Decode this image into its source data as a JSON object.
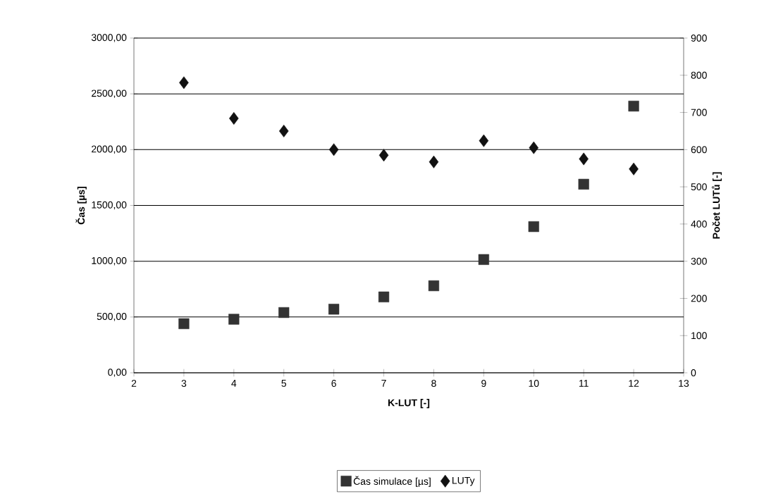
{
  "chart_data": {
    "type": "scatter",
    "xlabel": "K-LUT [-]",
    "ylabel": "Čas [µs]",
    "y2label": "Počet LUTů [-]",
    "x": [
      3,
      4,
      5,
      6,
      7,
      8,
      9,
      10,
      11,
      12
    ],
    "series": [
      {
        "name": "Čas simulace [µs]",
        "color": "#333333",
        "marker": "square",
        "values": [
          440,
          480,
          540,
          570,
          680,
          780,
          1015,
          1310,
          1690,
          2390
        ]
      },
      {
        "name": "LUTy",
        "color": "#111111",
        "marker": "diamond",
        "axis": "y2",
        "values": [
          780,
          684,
          650,
          600,
          585,
          567,
          624,
          605,
          575,
          548
        ]
      }
    ],
    "xlim": [
      2,
      13
    ],
    "xticks": [
      2,
      3,
      4,
      5,
      6,
      7,
      8,
      9,
      10,
      11,
      12,
      13
    ],
    "ylim": [
      0,
      3000
    ],
    "yticks": [
      {
        "value": 0,
        "label": "0,00"
      },
      {
        "value": 500,
        "label": "500,00"
      },
      {
        "value": 1000,
        "label": "1000,00"
      },
      {
        "value": 1500,
        "label": "1500,00"
      },
      {
        "value": 2000,
        "label": "2000,00"
      },
      {
        "value": 2500,
        "label": "2500,00"
      },
      {
        "value": 3000,
        "label": "3000,00"
      }
    ],
    "y2lim": [
      0,
      900
    ],
    "y2ticks": [
      0,
      100,
      200,
      300,
      400,
      500,
      600,
      700,
      800,
      900
    ],
    "grid": "y",
    "legend": "bottom"
  }
}
